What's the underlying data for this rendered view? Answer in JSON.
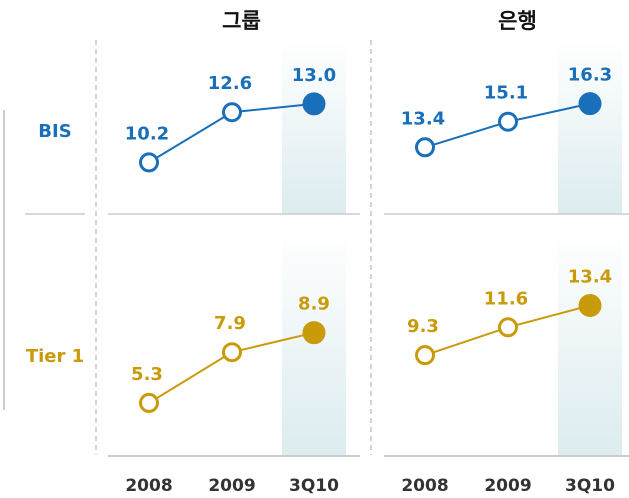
{
  "chart_data": [
    {
      "type": "line",
      "title": "그룹",
      "categories": [
        "2008",
        "2009",
        "3Q10"
      ],
      "series": [
        {
          "name": "BIS",
          "color": "#1a6fba",
          "values": [
            10.2,
            12.6,
            13.0
          ],
          "value_labels": [
            "10.2",
            "12.6",
            "13.0"
          ],
          "ylim": [
            8.4,
            15.1
          ]
        },
        {
          "name": "Tier 1",
          "color": "#c99a0a",
          "values": [
            5.3,
            7.9,
            8.9
          ],
          "value_labels": [
            "5.3",
            "7.9",
            "8.9"
          ],
          "ylim": [
            3.4,
            11.6
          ]
        }
      ]
    },
    {
      "type": "line",
      "title": "은행",
      "categories": [
        "2008",
        "2009",
        "3Q10"
      ],
      "series": [
        {
          "color": "#1a6fba",
          "values": [
            13.4,
            15.1,
            16.3
          ],
          "value_labels": [
            "13.4",
            "15.1",
            "16.3"
          ],
          "ylim": [
            9.9,
            19.2
          ]
        },
        {
          "color": "#c99a0a",
          "values": [
            9.3,
            11.6,
            13.4
          ],
          "value_labels": [
            "9.3",
            "11.6",
            "13.4"
          ],
          "ylim": [
            2.3,
            15.5
          ]
        }
      ]
    }
  ]
}
